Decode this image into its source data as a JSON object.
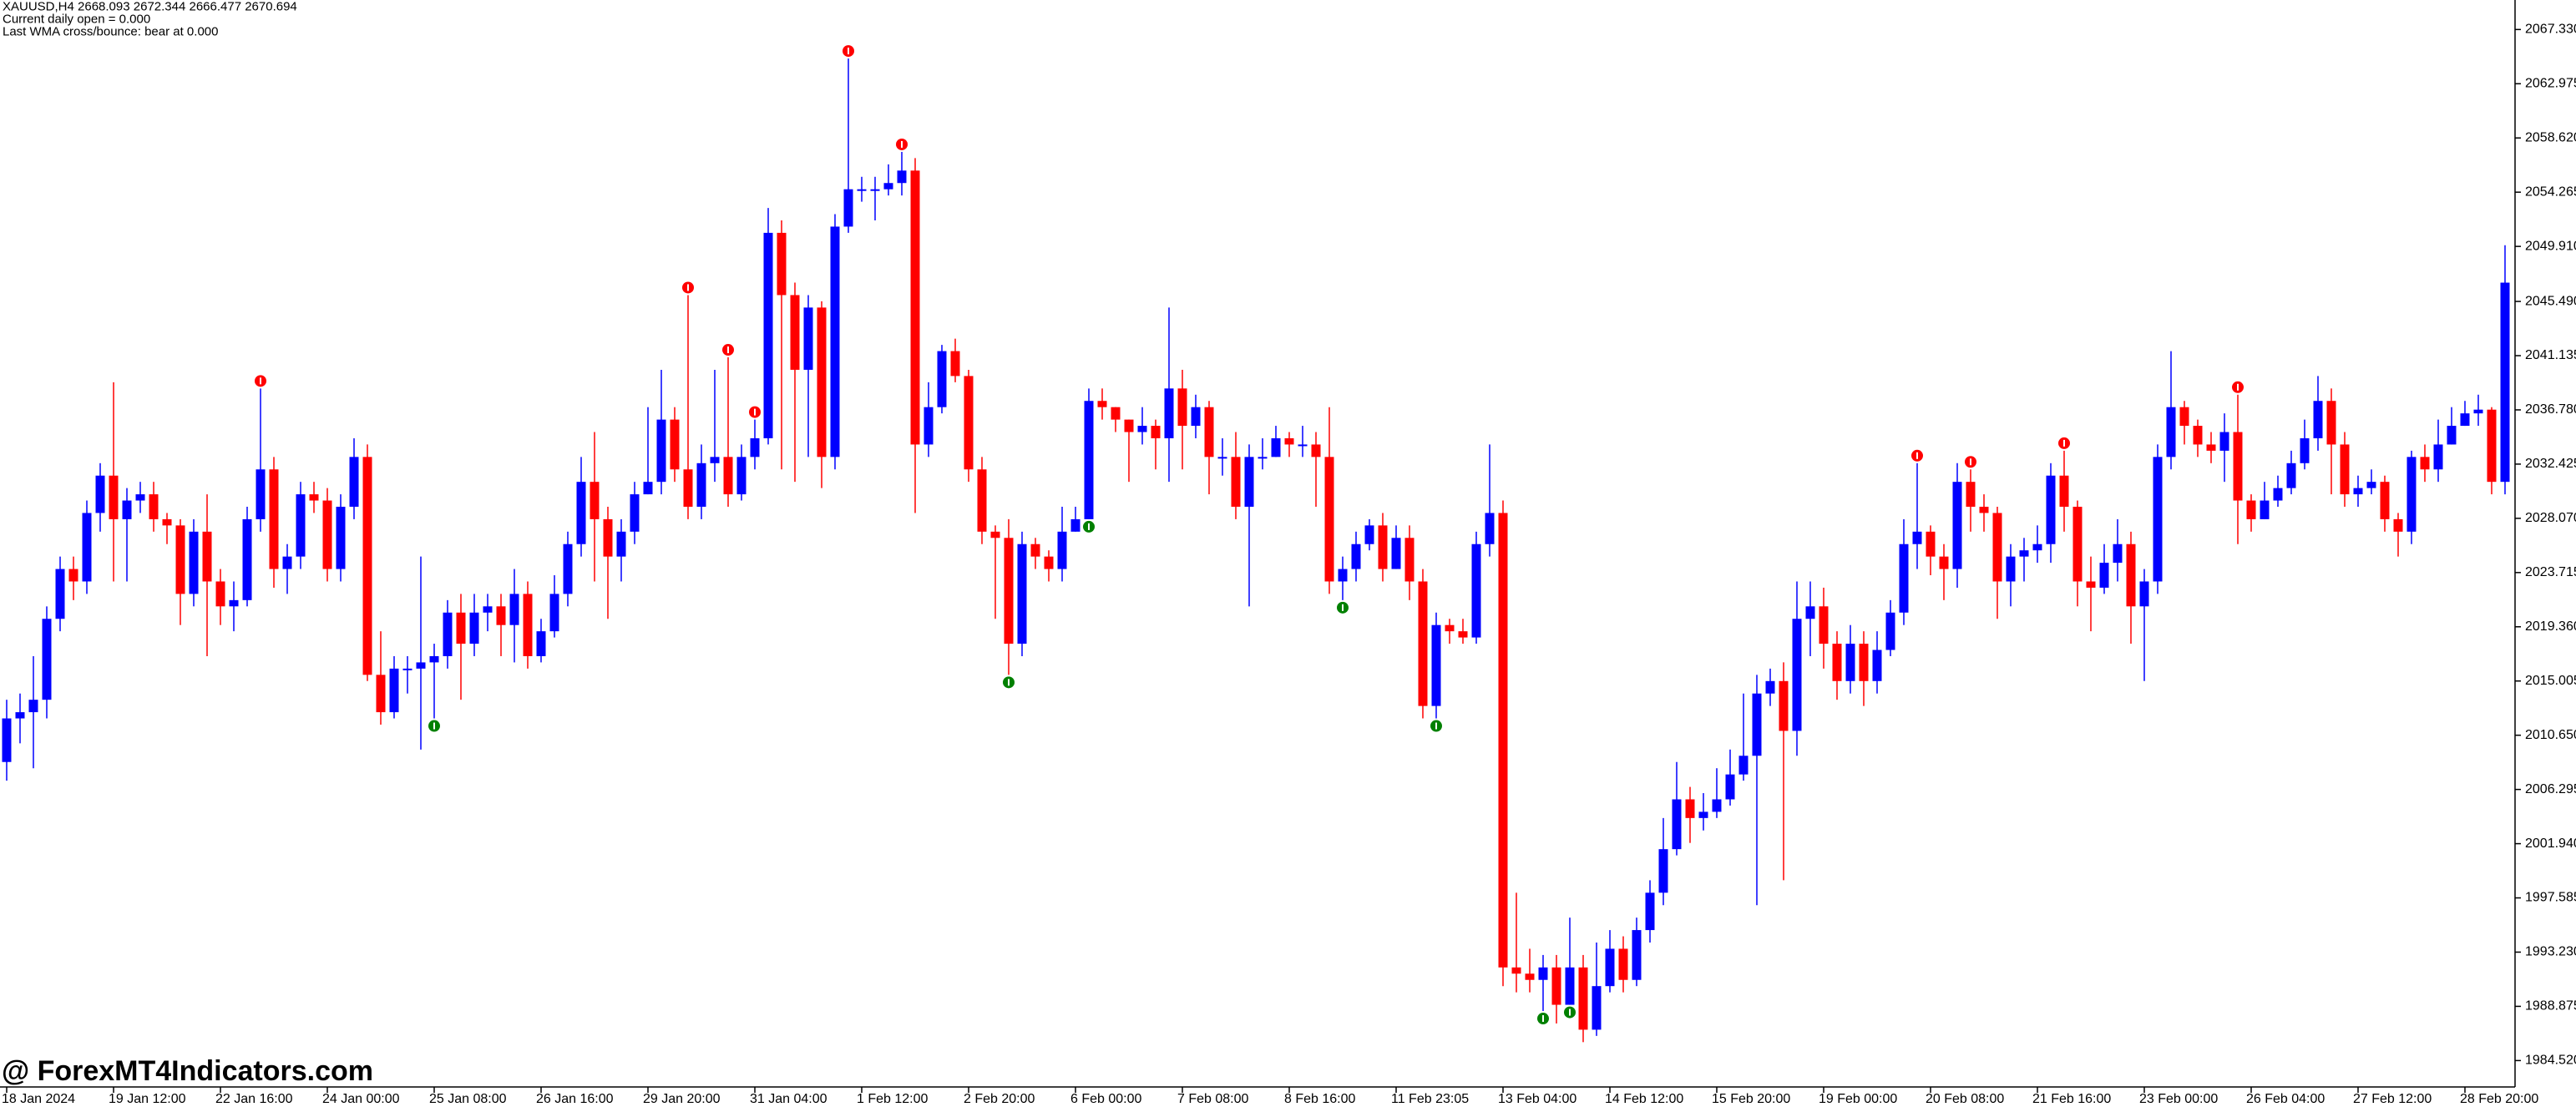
{
  "chart_data": {
    "type": "candlestick",
    "info_lines": [
      "XAUUSD,H4  2668.093 2672.344 2666.477 2670.694",
      "Current daily open = 0.000",
      "Last WMA cross/bounce: bear at 0.000"
    ],
    "watermark": "@ ForexMT4Indicators.com",
    "bull_color": "#0000ff",
    "bear_color": "#ff0000",
    "sell_color": "#ff0000",
    "buy_color": "#008000",
    "ylim": [
      1982.4,
      2069.7
    ],
    "yticks": [
      {
        "value": 2067.33,
        "label": "2067.330"
      },
      {
        "value": 2062.975,
        "label": "2062.975"
      },
      {
        "value": 2058.62,
        "label": "2058.620"
      },
      {
        "value": 2054.265,
        "label": "2054.265"
      },
      {
        "value": 2049.91,
        "label": "2049.910"
      },
      {
        "value": 2045.49,
        "label": "2045.490"
      },
      {
        "value": 2041.135,
        "label": "2041.135"
      },
      {
        "value": 2036.78,
        "label": "2036.780"
      },
      {
        "value": 2032.425,
        "label": "2032.425"
      },
      {
        "value": 2028.07,
        "label": "2028.070"
      },
      {
        "value": 2023.715,
        "label": "2023.715"
      },
      {
        "value": 2019.36,
        "label": "2019.360"
      },
      {
        "value": 2015.005,
        "label": "2015.005"
      },
      {
        "value": 2010.65,
        "label": "2010.650"
      },
      {
        "value": 2006.295,
        "label": "2006.295"
      },
      {
        "value": 2001.94,
        "label": "2001.940"
      },
      {
        "value": 1997.585,
        "label": "1997.585"
      },
      {
        "value": 1993.23,
        "label": "1993.230"
      },
      {
        "value": 1988.875,
        "label": "1988.875"
      },
      {
        "value": 1984.52,
        "label": "1984.520"
      }
    ],
    "categories": [
      "18 Jan 2024",
      null,
      null,
      null,
      null,
      null,
      null,
      null,
      "19 Jan 12:00",
      null,
      null,
      null,
      null,
      null,
      null,
      null,
      "22 Jan 16:00",
      null,
      null,
      null,
      null,
      null,
      null,
      null,
      "24 Jan 00:00",
      null,
      null,
      null,
      null,
      null,
      null,
      null,
      "25 Jan 08:00",
      null,
      null,
      null,
      null,
      null,
      null,
      null,
      "26 Jan 16:00",
      null,
      null,
      null,
      null,
      null,
      null,
      null,
      "29 Jan 20:00",
      null,
      null,
      null,
      null,
      null,
      null,
      null,
      "31 Jan 04:00",
      null,
      null,
      null,
      null,
      null,
      null,
      null,
      "1 Feb 12:00",
      null,
      null,
      null,
      null,
      null,
      null,
      null,
      "2 Feb 20:00",
      null,
      null,
      null,
      null,
      null,
      null,
      null,
      "6 Feb 00:00",
      null,
      null,
      null,
      null,
      null,
      null,
      null,
      "7 Feb 08:00",
      null,
      null,
      null,
      null,
      null,
      null,
      null,
      "8 Feb 16:00",
      null,
      null,
      null,
      null,
      null,
      null,
      null,
      "11 Feb 23:05",
      null,
      null,
      null,
      null,
      null,
      null,
      null,
      "13 Feb 04:00",
      null,
      null,
      null,
      null,
      null,
      null,
      null,
      "14 Feb 12:00",
      null,
      null,
      null,
      null,
      null,
      null,
      null,
      "15 Feb 20:00",
      null,
      null,
      null,
      null,
      null,
      null,
      null,
      "19 Feb 00:00",
      null,
      null,
      null,
      null,
      null,
      null,
      null,
      "20 Feb 08:00",
      null,
      null,
      null,
      null,
      null,
      null,
      null,
      "21 Feb 16:00",
      null,
      null,
      null,
      null,
      null,
      null,
      null,
      "23 Feb 00:00",
      null,
      null,
      null,
      null,
      null,
      null,
      null,
      "26 Feb 04:00",
      null,
      null,
      null,
      null,
      null,
      null,
      null,
      "27 Feb 12:00",
      null,
      null,
      null,
      null,
      null,
      null,
      null,
      "28 Feb 20:00",
      null,
      null,
      null
    ],
    "open": [
      2008.5,
      2012,
      2012.5,
      2013.5,
      2020,
      2024,
      2023,
      2028.5,
      2031.5,
      2028,
      2029.5,
      2030,
      2028,
      2027.5,
      2022,
      2027,
      2023,
      2021,
      2021.5,
      2028,
      2032,
      2024,
      2025,
      2030,
      2029.5,
      2024,
      2029,
      2033,
      2015.5,
      2012.5,
      2016,
      2016,
      2016.5,
      2017,
      2020.5,
      2018,
      2020.5,
      2021,
      2019.5,
      2022,
      2017,
      2019,
      2022,
      2026,
      2031,
      2028,
      2025,
      2027,
      2030,
      2031,
      2036,
      2032,
      2029,
      2032.5,
      2033,
      2030,
      2033,
      2034.5,
      2051,
      2046,
      2040,
      2045,
      2033,
      2051.5,
      2054.5,
      2054.5,
      2054.5,
      2055,
      2056,
      2034,
      2037,
      2041.5,
      2039.5,
      2032,
      2027,
      2026.5,
      2018,
      2026,
      2025,
      2024,
      2027,
      2028,
      2037.5,
      2037,
      2036,
      2035,
      2035.5,
      2034.5,
      2038.5,
      2035.5,
      2037,
      2033,
      2033,
      2029,
      2033,
      2033,
      2034.5,
      2034,
      2034,
      2033,
      2023,
      2024,
      2026,
      2027.5,
      2024,
      2026.5,
      2023,
      2013,
      2019.5,
      2019,
      2018.5,
      2026,
      2028.5,
      1992,
      1991.5,
      1991,
      1992,
      1989,
      1992,
      1987,
      1990.5,
      1993.5,
      1991,
      1995,
      1998,
      2001.5,
      2005.5,
      2004,
      2004.5,
      2005.5,
      2007.5,
      2009,
      2014,
      2015,
      2011,
      2020,
      2021,
      2018,
      2015,
      2018,
      2015,
      2017.5,
      2020.5,
      2026,
      2027,
      2025,
      2024,
      2031,
      2029,
      2028.5,
      2023,
      2025,
      2025.5,
      2026,
      2031.5,
      2029,
      2023,
      2022.5,
      2024.5,
      2026,
      2021,
      2023,
      2033,
      2037,
      2035.5,
      2034,
      2033.5,
      2035,
      2029.5,
      2028,
      2029.5,
      2030.5,
      2032.5,
      2034.5,
      2037.5,
      2034,
      2030,
      2030.5,
      2031,
      2028,
      2027,
      2033,
      2032,
      2034,
      2035.5,
      2036.5,
      2036.8,
      2031
    ],
    "high": [
      2013.5,
      2014,
      2017,
      2021,
      2025,
      2025,
      2029.5,
      2032.5,
      2039,
      2030.5,
      2031,
      2031,
      2028.5,
      2028,
      2028,
      2030,
      2024,
      2023,
      2029,
      2038.5,
      2033,
      2026,
      2031,
      2031,
      2030.5,
      2030,
      2034.5,
      2034,
      2019,
      2017,
      2017,
      2025,
      2018,
      2021.5,
      2022,
      2022,
      2022,
      2022,
      2024,
      2023,
      2020,
      2023.5,
      2027,
      2033,
      2035,
      2029,
      2028,
      2031,
      2037,
      2040,
      2037,
      2046,
      2034,
      2040,
      2041,
      2034,
      2036,
      2053,
      2052,
      2047,
      2046,
      2045.5,
      2052.5,
      2065,
      2055.5,
      2055.5,
      2056.5,
      2057.5,
      2057,
      2039,
      2042,
      2042.5,
      2040,
      2033,
      2027.5,
      2028,
      2027,
      2026.5,
      2025.5,
      2029,
      2029,
      2038.5,
      2038.5,
      2037,
      2036,
      2037,
      2036,
      2045,
      2040,
      2038,
      2037.5,
      2034.5,
      2035,
      2034,
      2034.5,
      2035.5,
      2035,
      2035.5,
      2035,
      2037,
      2025,
      2027,
      2028,
      2028.5,
      2027.5,
      2027.5,
      2024,
      2020.5,
      2020,
      2020,
      2027,
      2034,
      2029.5,
      1998,
      1993.5,
      1993,
      1993,
      1996,
      1993,
      1994,
      1995,
      1994.5,
      1996,
      1999,
      2004,
      2008.5,
      2006.5,
      2006,
      2008,
      2009.5,
      2014,
      2015.5,
      2016,
      2016.5,
      2023,
      2023,
      2022.5,
      2019,
      2019.5,
      2019,
      2019,
      2021.5,
      2028,
      2032.5,
      2027.5,
      2026,
      2032.5,
      2032,
      2030,
      2029,
      2026,
      2026.5,
      2027.5,
      2032.5,
      2033.5,
      2029.5,
      2025,
      2026,
      2028,
      2027,
      2024,
      2034,
      2041.5,
      2037.5,
      2036,
      2035,
      2036.5,
      2038,
      2030,
      2031,
      2031.5,
      2033.5,
      2036,
      2039.5,
      2038.5,
      2035,
      2031.5,
      2032,
      2031.5,
      2028.5,
      2033.5,
      2034,
      2036,
      2037,
      2037.5,
      2038,
      2037,
      2050
    ],
    "low": [
      2007,
      2010,
      2008,
      2012,
      2019,
      2021.5,
      2022,
      2027,
      2023,
      2023,
      2028.5,
      2027,
      2026,
      2019.5,
      2021,
      2017,
      2019.5,
      2019,
      2021,
      2027,
      2022.5,
      2022,
      2024,
      2028.5,
      2023,
      2023,
      2028,
      2015,
      2011.5,
      2012,
      2014,
      2009.5,
      2012,
      2016,
      2013.5,
      2017,
      2019,
      2017,
      2016.5,
      2016,
      2016.5,
      2018.5,
      2021,
      2025,
      2023,
      2020,
      2023,
      2026,
      2030,
      2030,
      2031,
      2028,
      2028,
      2031,
      2029,
      2029.5,
      2032,
      2034,
      2032,
      2031,
      2033,
      2030.5,
      2032,
      2051,
      2053.5,
      2052,
      2054,
      2054,
      2028.5,
      2033,
      2036.5,
      2039,
      2031,
      2026,
      2020,
      2015.5,
      2017,
      2024,
      2023,
      2023,
      2027,
      2028,
      2036,
      2035,
      2031,
      2034,
      2032,
      2031,
      2032,
      2034.5,
      2030,
      2031.5,
      2028,
      2021,
      2032,
      2033,
      2033,
      2033,
      2029,
      2022,
      2021.5,
      2023,
      2025.5,
      2023,
      2024,
      2021.5,
      2012,
      2012,
      2018,
      2018,
      2018,
      2025,
      1990.5,
      1990,
      1990,
      1988.5,
      1987.5,
      1989,
      1986,
      1986.5,
      1990,
      1990,
      1990.5,
      1994,
      1997,
      2001,
      2002,
      2003,
      2004,
      2005,
      2007,
      1997,
      2013,
      1999,
      2009,
      2017,
      2016,
      2013.5,
      2014,
      2013,
      2014,
      2017,
      2019.5,
      2024,
      2023.5,
      2021.5,
      2022.5,
      2027,
      2027,
      2020,
      2021,
      2023,
      2024.5,
      2024.5,
      2027,
      2021,
      2019,
      2022,
      2023,
      2018,
      2015,
      2022,
      2032,
      2034,
      2033,
      2032.5,
      2031,
      2026,
      2027,
      2028,
      2029,
      2030,
      2032,
      2033.5,
      2030,
      2029,
      2029,
      2030,
      2027,
      2025,
      2026,
      2031,
      2031,
      2034,
      2035.5,
      2035.5,
      2030,
      2030
    ],
    "close": [
      2012,
      2012.5,
      2013.5,
      2020,
      2024,
      2023,
      2028.5,
      2031.5,
      2028,
      2029.5,
      2030,
      2028,
      2027.5,
      2022,
      2027,
      2023,
      2021,
      2021.5,
      2028,
      2032,
      2024,
      2025,
      2030,
      2029.5,
      2024,
      2029,
      2033,
      2015.5,
      2012.5,
      2016,
      2016,
      2016.5,
      2017,
      2020.5,
      2018,
      2020.5,
      2021,
      2019.5,
      2022,
      2017,
      2019,
      2022,
      2026,
      2031,
      2028,
      2025,
      2027,
      2030,
      2031,
      2036,
      2032,
      2029,
      2032.5,
      2033,
      2030,
      2033,
      2034.5,
      2051,
      2046,
      2040,
      2045,
      2033,
      2051.5,
      2054.5,
      2054.5,
      2054.5,
      2055,
      2056,
      2034,
      2037,
      2041.5,
      2039.5,
      2032,
      2027,
      2026.5,
      2018,
      2026,
      2025,
      2024,
      2027,
      2028,
      2037.5,
      2037,
      2036,
      2035,
      2035.5,
      2034.5,
      2038.5,
      2035.5,
      2037,
      2033,
      2033,
      2029,
      2033,
      2033,
      2034.5,
      2034,
      2034,
      2033,
      2023,
      2024,
      2026,
      2027.5,
      2024,
      2026.5,
      2023,
      2013,
      2019.5,
      2019,
      2018.5,
      2026,
      2028.5,
      1992,
      1991.5,
      1991,
      1992,
      1989,
      1992,
      1987,
      1990.5,
      1993.5,
      1991,
      1995,
      1998,
      2001.5,
      2005.5,
      2004,
      2004.5,
      2005.5,
      2007.5,
      2009,
      2014,
      2015,
      2011,
      2020,
      2021,
      2018,
      2015,
      2018,
      2015,
      2017.5,
      2020.5,
      2026,
      2027,
      2025,
      2024,
      2031,
      2029,
      2028.5,
      2023,
      2025,
      2025.5,
      2026,
      2031.5,
      2029,
      2023,
      2022.5,
      2024.5,
      2026,
      2021,
      2023,
      2033,
      2037,
      2035.5,
      2034,
      2033.5,
      2035,
      2029.5,
      2028,
      2029.5,
      2030.5,
      2032.5,
      2034.5,
      2037.5,
      2034,
      2030,
      2030.5,
      2031,
      2028,
      2027,
      2033,
      2032,
      2034,
      2035.5,
      2036.5,
      2036.8,
      2031,
      2047
    ],
    "sell_signals": [
      19,
      51,
      54,
      56,
      63,
      67,
      143,
      147,
      154,
      167
    ],
    "buy_signals": [
      32,
      75,
      81,
      100,
      107,
      115,
      117
    ]
  }
}
